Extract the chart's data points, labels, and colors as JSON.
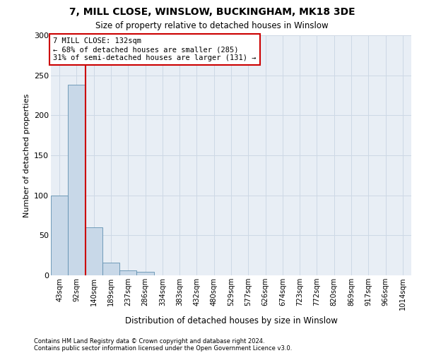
{
  "title1": "7, MILL CLOSE, WINSLOW, BUCKINGHAM, MK18 3DE",
  "title2": "Size of property relative to detached houses in Winslow",
  "xlabel": "Distribution of detached houses by size in Winslow",
  "ylabel": "Number of detached properties",
  "footnote1": "Contains HM Land Registry data © Crown copyright and database right 2024.",
  "footnote2": "Contains public sector information licensed under the Open Government Licence v3.0.",
  "bin_labels": [
    "43sqm",
    "92sqm",
    "140sqm",
    "189sqm",
    "237sqm",
    "286sqm",
    "334sqm",
    "383sqm",
    "432sqm",
    "480sqm",
    "529sqm",
    "577sqm",
    "626sqm",
    "674sqm",
    "723sqm",
    "772sqm",
    "820sqm",
    "869sqm",
    "917sqm",
    "966sqm",
    "1014sqm"
  ],
  "bar_values": [
    100,
    238,
    60,
    16,
    6,
    4,
    0,
    0,
    0,
    0,
    0,
    0,
    0,
    0,
    0,
    0,
    0,
    0,
    0,
    0,
    0
  ],
  "bar_color": "#c8d8e8",
  "bar_edge_color": "#6090b0",
  "property_line_x": 1.5,
  "property_label": "7 MILL CLOSE: 132sqm",
  "annotation_line1": "← 68% of detached houses are smaller (285)",
  "annotation_line2": "31% of semi-detached houses are larger (131) →",
  "annotation_box_color": "#ffffff",
  "annotation_box_edge": "#cc0000",
  "property_line_color": "#cc0000",
  "ylim": [
    0,
    300
  ],
  "yticks": [
    0,
    50,
    100,
    150,
    200,
    250,
    300
  ],
  "background_color": "#ffffff",
  "grid_color": "#cdd8e5",
  "plot_bg_color": "#e8eef5"
}
